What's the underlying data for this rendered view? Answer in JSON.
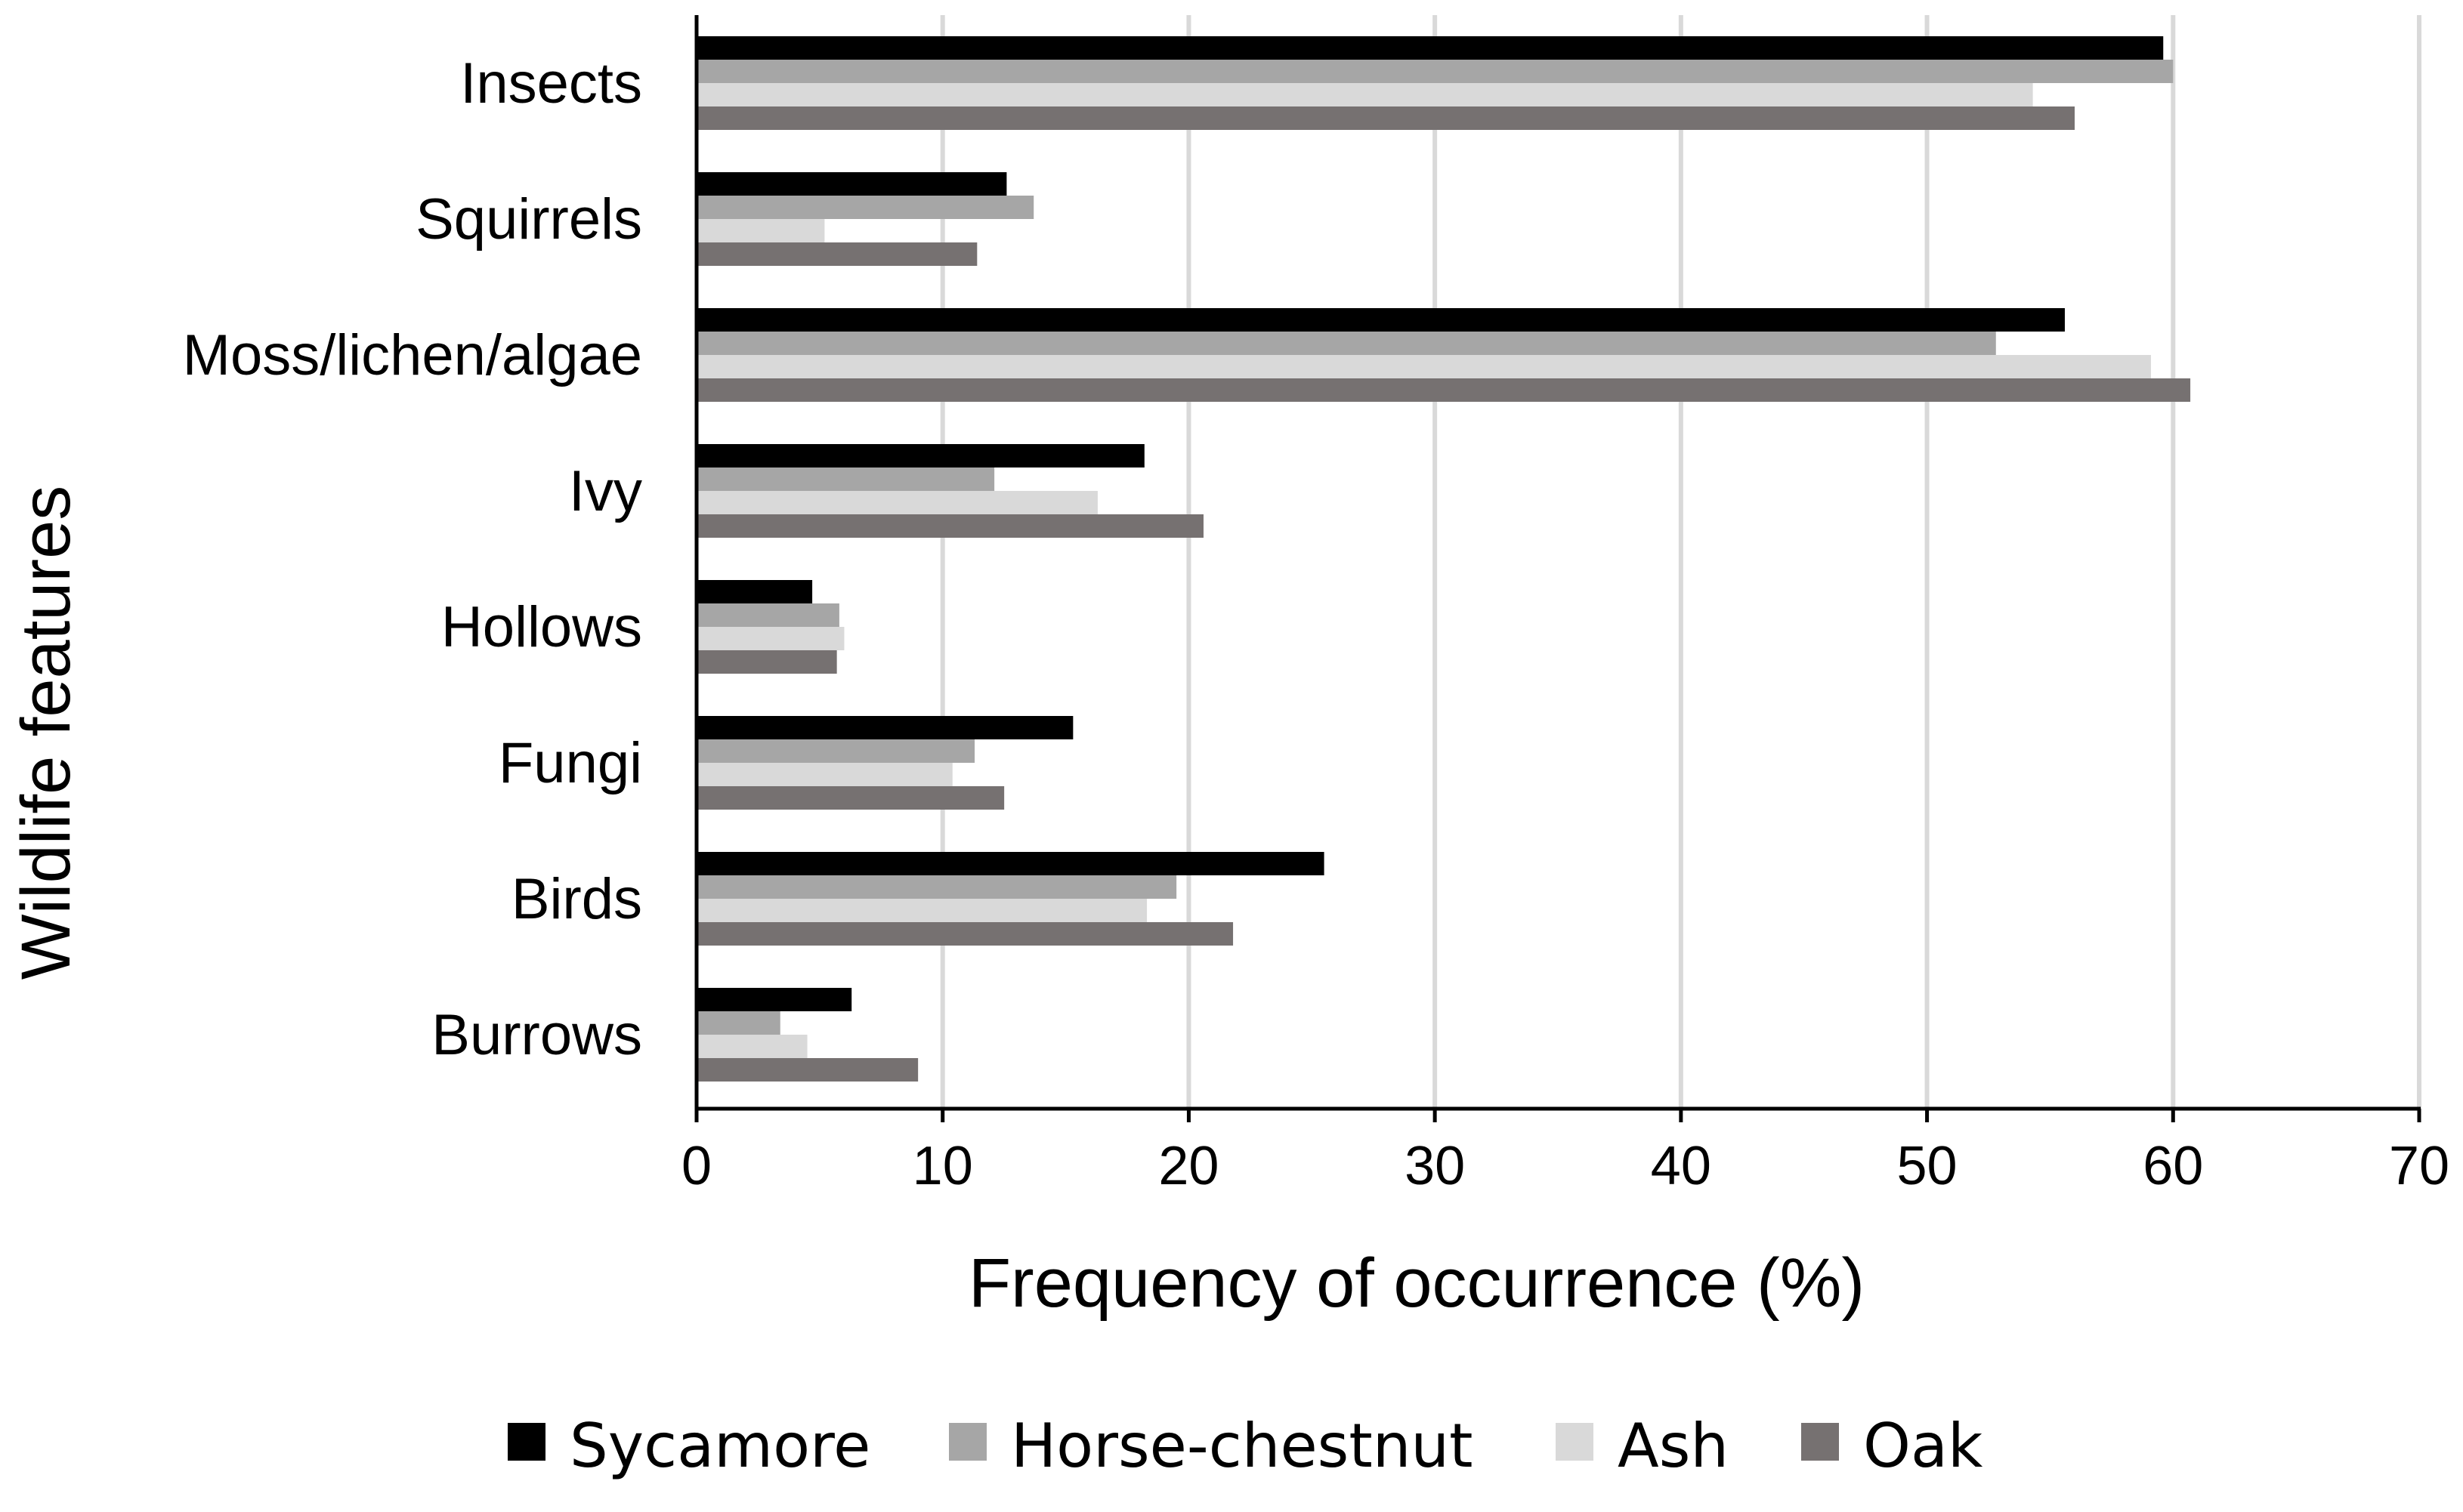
{
  "chart_data": {
    "type": "bar",
    "orientation": "horizontal",
    "categories": [
      "Insects",
      "Squirrels",
      "Moss/lichen/algae",
      "Ivy",
      "Hollows",
      "Fungi",
      "Birds",
      "Burrows"
    ],
    "series": [
      {
        "name": "Sycamore",
        "color": "#000000",
        "values": [
          59.6,
          12.6,
          55.6,
          18.2,
          4.7,
          15.3,
          25.5,
          6.3
        ]
      },
      {
        "name": "Horse-chestnut",
        "color": "#a6a6a6",
        "values": [
          60.0,
          13.7,
          52.8,
          12.1,
          5.8,
          11.3,
          19.5,
          3.4
        ]
      },
      {
        "name": "Ash",
        "color": "#d9d9d9",
        "values": [
          54.3,
          5.2,
          59.1,
          16.3,
          6.0,
          10.4,
          18.3,
          4.5
        ]
      },
      {
        "name": "Oak",
        "color": "#767171",
        "values": [
          56.0,
          11.4,
          60.7,
          20.6,
          5.7,
          12.5,
          21.8,
          9.0
        ]
      }
    ],
    "xlabel": "Frequency of occurrence (%)",
    "ylabel": "Wildlife features",
    "xlim": [
      0,
      70
    ],
    "xticks": [
      0,
      10,
      20,
      30,
      40,
      50,
      60,
      70
    ],
    "grid": "vertical",
    "legend": "bottom"
  }
}
